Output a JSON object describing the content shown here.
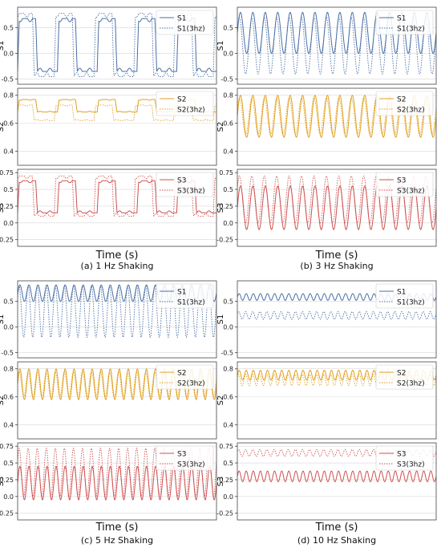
{
  "colors": {
    "S1": "#4a6fa5",
    "S2": "#e0a020",
    "S3": "#d05050",
    "grid": "#d8d8d8",
    "axis": "#444444"
  },
  "chart_data": [
    {
      "type": "line",
      "caption": "(a) 1 Hz Shaking",
      "xlabel": "Time (s)",
      "freq_hz": 1,
      "cycles_shown": 5,
      "panels": [
        {
          "ylabel": "S1",
          "ylim": [
            -0.6,
            0.9
          ],
          "yticks": [
            -0.5,
            0.0,
            0.5
          ],
          "series": [
            {
              "name": "S1",
              "style": "solid",
              "low": -0.35,
              "high": 0.68,
              "waveform": "square"
            },
            {
              "name": "S1(3hz)",
              "style": "dotted",
              "low": -0.45,
              "high": 0.78,
              "waveform": "square"
            }
          ]
        },
        {
          "ylabel": "S2",
          "ylim": [
            0.3,
            0.85
          ],
          "yticks": [
            0.4,
            0.6,
            0.8
          ],
          "series": [
            {
              "name": "S2",
              "style": "solid",
              "low": 0.68,
              "high": 0.77,
              "waveform": "square"
            },
            {
              "name": "S2(3hz)",
              "style": "dotted",
              "low": 0.62,
              "high": 0.73,
              "waveform": "square"
            }
          ]
        },
        {
          "ylabel": "S3",
          "ylim": [
            -0.35,
            0.8
          ],
          "yticks": [
            -0.25,
            0.0,
            0.25,
            0.5,
            0.75
          ],
          "series": [
            {
              "name": "S3",
              "style": "solid",
              "low": 0.15,
              "high": 0.63,
              "waveform": "square"
            },
            {
              "name": "S3(3hz)",
              "style": "dotted",
              "low": 0.1,
              "high": 0.7,
              "waveform": "square"
            }
          ]
        }
      ]
    },
    {
      "type": "line",
      "caption": "(b) 3 Hz Shaking",
      "xlabel": "Time (s)",
      "freq_hz": 3,
      "cycles_shown": 16,
      "panels": [
        {
          "ylabel": "S1",
          "ylim": [
            -0.6,
            0.9
          ],
          "yticks": [
            -0.5,
            0.0,
            0.5
          ],
          "series": [
            {
              "name": "S1",
              "style": "solid",
              "low": 0.0,
              "high": 0.8,
              "waveform": "sine"
            },
            {
              "name": "S1(3hz)",
              "style": "dotted",
              "low": -0.4,
              "high": 0.7,
              "waveform": "sine"
            }
          ]
        },
        {
          "ylabel": "S2",
          "ylim": [
            0.3,
            0.85
          ],
          "yticks": [
            0.4,
            0.6,
            0.8
          ],
          "series": [
            {
              "name": "S2",
              "style": "solid",
              "low": 0.5,
              "high": 0.8,
              "waveform": "sine"
            },
            {
              "name": "S2(3hz)",
              "style": "dotted",
              "low": 0.52,
              "high": 0.78,
              "waveform": "sine"
            }
          ]
        },
        {
          "ylabel": "S3",
          "ylim": [
            -0.35,
            0.8
          ],
          "yticks": [
            -0.25,
            0.0,
            0.25,
            0.5,
            0.75
          ],
          "series": [
            {
              "name": "S3",
              "style": "solid",
              "low": -0.1,
              "high": 0.55,
              "waveform": "sine"
            },
            {
              "name": "S3(3hz)",
              "style": "dotted",
              "low": 0.0,
              "high": 0.7,
              "waveform": "sine"
            }
          ]
        }
      ]
    },
    {
      "type": "line",
      "caption": "(c) 5 Hz Shaking",
      "xlabel": "Time (s)",
      "freq_hz": 5,
      "cycles_shown": 22,
      "panels": [
        {
          "ylabel": "S1",
          "ylim": [
            -0.6,
            0.9
          ],
          "yticks": [
            -0.5,
            0.0,
            0.5
          ],
          "series": [
            {
              "name": "S1",
              "style": "solid",
              "low": 0.5,
              "high": 0.82,
              "waveform": "sine"
            },
            {
              "name": "S1(3hz)",
              "style": "dotted",
              "low": -0.2,
              "high": 0.8,
              "waveform": "sine"
            }
          ]
        },
        {
          "ylabel": "S2",
          "ylim": [
            0.3,
            0.85
          ],
          "yticks": [
            0.4,
            0.6,
            0.8
          ],
          "series": [
            {
              "name": "S2",
              "style": "solid",
              "low": 0.58,
              "high": 0.8,
              "waveform": "sine"
            },
            {
              "name": "S2(3hz)",
              "style": "dotted",
              "low": 0.6,
              "high": 0.78,
              "waveform": "sine"
            }
          ]
        },
        {
          "ylabel": "S3",
          "ylim": [
            -0.35,
            0.8
          ],
          "yticks": [
            -0.25,
            0.0,
            0.25,
            0.5,
            0.75
          ],
          "series": [
            {
              "name": "S3",
              "style": "solid",
              "low": -0.05,
              "high": 0.45,
              "waveform": "sine"
            },
            {
              "name": "S3(3hz)",
              "style": "dotted",
              "low": 0.0,
              "high": 0.72,
              "waveform": "sine"
            }
          ]
        }
      ]
    },
    {
      "type": "line",
      "caption": "(d) 10 Hz Shaking",
      "xlabel": "Time (s)",
      "freq_hz": 10,
      "cycles_shown": 28,
      "panels": [
        {
          "ylabel": "S1",
          "ylim": [
            -0.6,
            0.9
          ],
          "yticks": [
            -0.5,
            0.0,
            0.5
          ],
          "series": [
            {
              "name": "S1",
              "style": "solid",
              "low": 0.52,
              "high": 0.65,
              "waveform": "sine"
            },
            {
              "name": "S1(3hz)",
              "style": "dotted",
              "low": 0.15,
              "high": 0.3,
              "waveform": "sine"
            }
          ]
        },
        {
          "ylabel": "S2",
          "ylim": [
            0.3,
            0.85
          ],
          "yticks": [
            0.4,
            0.6,
            0.8
          ],
          "series": [
            {
              "name": "S2",
              "style": "solid",
              "low": 0.72,
              "high": 0.79,
              "waveform": "sine"
            },
            {
              "name": "S2(3hz)",
              "style": "dotted",
              "low": 0.68,
              "high": 0.76,
              "waveform": "sine"
            }
          ]
        },
        {
          "ylabel": "S3",
          "ylim": [
            -0.35,
            0.8
          ],
          "yticks": [
            -0.25,
            0.0,
            0.25,
            0.5,
            0.75
          ],
          "series": [
            {
              "name": "S3",
              "style": "solid",
              "low": 0.22,
              "high": 0.38,
              "waveform": "sine"
            },
            {
              "name": "S3(3hz)",
              "style": "dotted",
              "low": 0.6,
              "high": 0.7,
              "waveform": "sine"
            }
          ]
        }
      ]
    }
  ]
}
